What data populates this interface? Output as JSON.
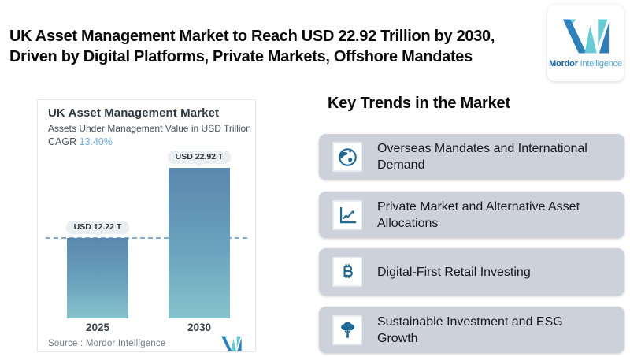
{
  "header": {
    "title_line1": "UK Asset Management Market to Reach USD 22.92 Trillion by 2030,",
    "title_line2": "Driven by Digital Platforms, Private Markets, Offshore Mandates"
  },
  "logo": {
    "brand_bold": "Mordor",
    "brand_light": "Intelligence"
  },
  "chart_card": {
    "title": "UK Asset Management Market",
    "subtitle": "Assets Under Management Value in USD Trillion",
    "cagr_label": "CAGR ",
    "cagr_value": "13.40%",
    "source_text": "Source :  Mordor Intelligence"
  },
  "chart_data": {
    "type": "bar",
    "title": "UK Asset Management Market",
    "subtitle": "Assets Under Management Value in USD Trillion",
    "unit": "USD Trillion",
    "cagr": "13.40%",
    "categories": [
      "2025",
      "2030"
    ],
    "values": [
      12.22,
      22.92
    ],
    "value_labels": [
      "USD 12.22 T",
      "USD 22.92 T"
    ],
    "ylim": [
      0,
      24
    ],
    "grid": false,
    "legend": false,
    "reference_line": {
      "value": 12.22,
      "style": "dashed",
      "color": "#83abce"
    },
    "bar_gradient_top": "#5a87ae",
    "bar_gradient_bottom": "#85c3cc"
  },
  "trends": {
    "heading": "Key Trends in the Market",
    "items": [
      {
        "icon": "globe-icon",
        "label": "Overseas Mandates and International Demand"
      },
      {
        "icon": "line-chart-icon",
        "label": "Private Market and Alternative Asset Allocations"
      },
      {
        "icon": "bitcoin-icon",
        "label": "Digital-First Retail Investing"
      },
      {
        "icon": "tree-icon",
        "label": "Sustainable Investment and ESG Growth"
      }
    ]
  },
  "colors": {
    "accent_blue": "#2e80ba",
    "accent_teal": "#68cbd3",
    "icon_blue": "#226a96",
    "trend_card_bg": "#cdd2da",
    "cagr_value_blue": "#6ea9dc",
    "pill_bg": "#e9eff1"
  }
}
